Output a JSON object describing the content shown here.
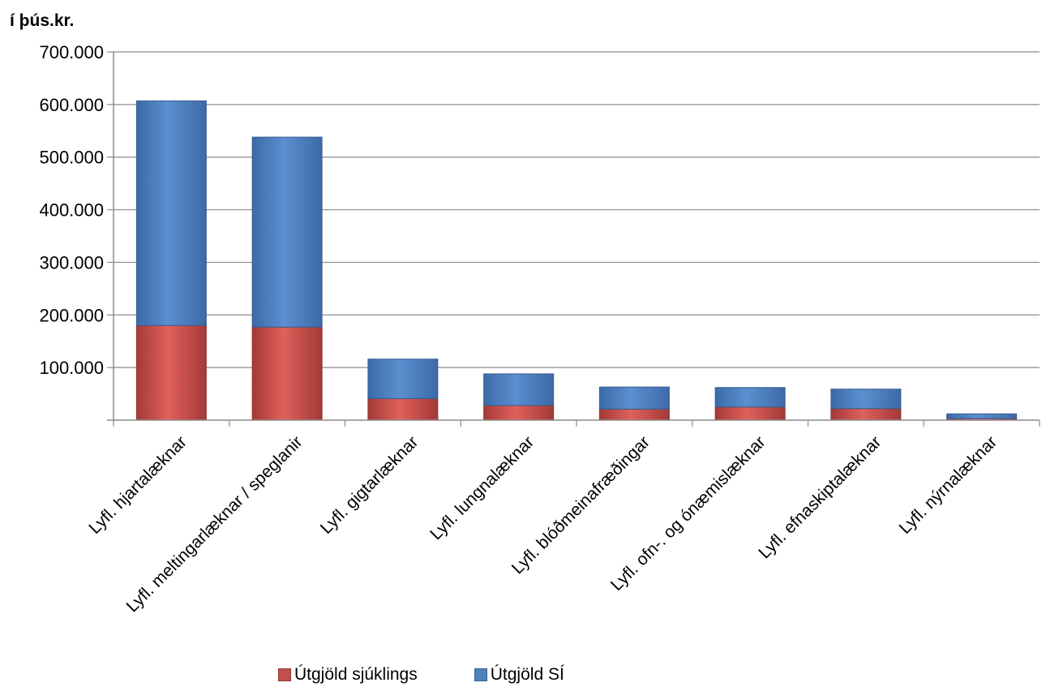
{
  "unit_label": "í þús.kr.",
  "colors": {
    "patient": "#c0504d",
    "si": "#4f81bd",
    "grid": "#8c8c8c"
  },
  "chart_data": {
    "type": "bar",
    "stacked": true,
    "categories": [
      "Lyfl. hjartalæknar",
      "Lyfl. meltingarlæknar / speglanir",
      "Lyfl. gigtarlæknar",
      "Lyfl. lungnalæknar",
      "Lyfl. blóðmeinafræðingar",
      "Lyfl. ofn-. og ónæmislæknar",
      "Lyfl. efnaskiptalæknar",
      "Lyfl. nýrnalæknar"
    ],
    "series": [
      {
        "name": "Útgjöld sjúklings",
        "values": [
          180000,
          177000,
          41000,
          28000,
          21000,
          25000,
          22000,
          3000
        ]
      },
      {
        "name": "Útgjöld SÍ",
        "values": [
          427000,
          361000,
          75000,
          60000,
          42000,
          37000,
          37000,
          9000
        ]
      }
    ],
    "yticks": [
      "100.000",
      "200.000",
      "300.000",
      "400.000",
      "500.000",
      "600.000",
      "700.000"
    ],
    "ylim": [
      0,
      700000
    ],
    "grid": true,
    "legend_position": "bottom"
  }
}
